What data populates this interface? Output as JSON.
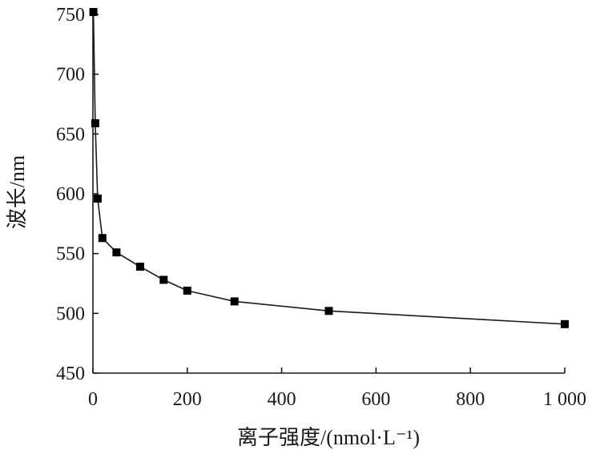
{
  "chart_data": {
    "type": "line",
    "title": "",
    "xlabel": "离子强度/(nmol·L⁻¹)",
    "ylabel": "波长/nm",
    "xlim": [
      0,
      1000
    ],
    "ylim": [
      450,
      750
    ],
    "x_ticks": [
      0,
      200,
      400,
      600,
      800,
      1000
    ],
    "x_tick_labels": [
      "0",
      "200",
      "400",
      "600",
      "800",
      "1 000"
    ],
    "y_ticks": [
      450,
      500,
      550,
      600,
      650,
      700,
      750
    ],
    "y_tick_labels": [
      "450",
      "500",
      "550",
      "600",
      "650",
      "700",
      "750"
    ],
    "grid": false,
    "legend": "none",
    "series": [
      {
        "marker": "square",
        "color": "#000000",
        "points": [
          {
            "x": 1,
            "y": 752
          },
          {
            "x": 5,
            "y": 659
          },
          {
            "x": 10,
            "y": 596
          },
          {
            "x": 20,
            "y": 563
          },
          {
            "x": 50,
            "y": 551
          },
          {
            "x": 100,
            "y": 539
          },
          {
            "x": 150,
            "y": 528
          },
          {
            "x": 200,
            "y": 519
          },
          {
            "x": 300,
            "y": 510
          },
          {
            "x": 500,
            "y": 502
          },
          {
            "x": 1000,
            "y": 491
          }
        ]
      }
    ]
  }
}
